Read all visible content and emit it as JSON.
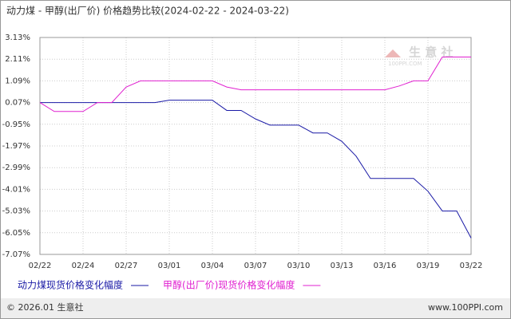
{
  "chart_data": {
    "type": "line",
    "title": "动力煤 - 甲醇(出厂价) 价格趋势比较(2024-02-22 - 2024-03-22)",
    "categories": [
      "02/22",
      null,
      null,
      "02/24",
      null,
      null,
      "02/27",
      null,
      null,
      "03/01",
      null,
      null,
      "03/04",
      null,
      null,
      "03/07",
      null,
      null,
      "03/10",
      null,
      null,
      "03/13",
      null,
      null,
      "03/16",
      null,
      null,
      "03/19",
      null,
      null,
      "03/22"
    ],
    "series": [
      {
        "name": "动力煤现货价格变化幅度",
        "color": "#1a1aa6",
        "values": [
          0.07,
          0.07,
          0.07,
          0.07,
          0.07,
          0.07,
          0.07,
          0.07,
          0.07,
          0.18,
          0.18,
          0.18,
          0.18,
          -0.3,
          -0.3,
          -0.7,
          -0.99,
          -0.99,
          -0.99,
          -1.36,
          -1.36,
          -1.75,
          -2.45,
          -3.5,
          -3.5,
          -3.5,
          -3.5,
          -4.1,
          -5.03,
          -5.03,
          -6.3
        ]
      },
      {
        "name": "甲醇(出厂价)现货价格变化幅度",
        "color": "#e020d0",
        "values": [
          0.07,
          -0.35,
          -0.35,
          -0.35,
          0.07,
          0.07,
          0.8,
          1.09,
          1.09,
          1.09,
          1.09,
          1.09,
          1.09,
          0.8,
          0.67,
          0.67,
          0.67,
          0.67,
          0.67,
          0.67,
          0.67,
          0.67,
          0.67,
          0.67,
          0.67,
          0.85,
          1.09,
          1.09,
          2.21,
          2.21,
          2.21
        ]
      }
    ],
    "ylim": [
      -7.07,
      3.13
    ],
    "yticks": [
      {
        "value": 3.13,
        "label": "3.13%"
      },
      {
        "value": 2.11,
        "label": "2.11%"
      },
      {
        "value": 1.09,
        "label": "1.09%"
      },
      {
        "value": 0.07,
        "label": "0.07%"
      },
      {
        "value": -0.95,
        "label": "-0.95%"
      },
      {
        "value": -1.97,
        "label": "-1.97%"
      },
      {
        "value": -2.99,
        "label": "-2.99%"
      },
      {
        "value": -4.01,
        "label": "-4.01%"
      },
      {
        "value": -5.03,
        "label": "-5.03%"
      },
      {
        "value": -6.05,
        "label": "-6.05%"
      },
      {
        "value": -7.07,
        "label": "-7.07%"
      }
    ],
    "grid": true
  },
  "footer": {
    "copyright": "© 2026.01 生意社",
    "site": "www.100PPI.com"
  },
  "watermark": {
    "name": "生 意 社",
    "site": "100PPI.COM"
  }
}
